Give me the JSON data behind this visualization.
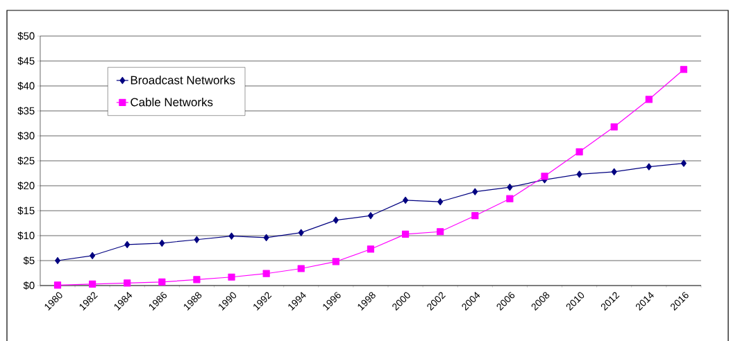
{
  "chart_data": {
    "type": "line",
    "categories": [
      "1980",
      "1982",
      "1984",
      "1986",
      "1988",
      "1990",
      "1992",
      "1994",
      "1996",
      "1998",
      "2000",
      "2002",
      "2004",
      "2006",
      "2008",
      "2010",
      "2012",
      "2014",
      "2016"
    ],
    "series": [
      {
        "name": "Broadcast Networks",
        "color": "#000080",
        "marker": "diamond",
        "values": [
          5.0,
          6.0,
          8.2,
          8.5,
          9.2,
          9.9,
          9.6,
          10.6,
          13.1,
          14.0,
          17.1,
          16.8,
          18.8,
          19.7,
          21.2,
          22.3,
          22.8,
          23.8,
          24.5
        ]
      },
      {
        "name": "Cable Networks",
        "color": "#ff00ff",
        "marker": "square",
        "values": [
          0.1,
          0.3,
          0.5,
          0.7,
          1.2,
          1.7,
          2.4,
          3.4,
          4.8,
          7.3,
          10.3,
          10.8,
          14.0,
          17.4,
          21.9,
          26.8,
          31.8,
          37.3,
          43.3
        ]
      }
    ],
    "ylim": [
      0,
      50
    ],
    "yticks": [
      {
        "value": 0,
        "label": "$0"
      },
      {
        "value": 5,
        "label": "$5"
      },
      {
        "value": 10,
        "label": "$10"
      },
      {
        "value": 15,
        "label": "$15"
      },
      {
        "value": 20,
        "label": "$20"
      },
      {
        "value": 25,
        "label": "$25"
      },
      {
        "value": 30,
        "label": "$30"
      },
      {
        "value": 35,
        "label": "$35"
      },
      {
        "value": 40,
        "label": "$40"
      },
      {
        "value": 45,
        "label": "$45"
      },
      {
        "value": 50,
        "label": "$50"
      }
    ],
    "grid": "y",
    "legend": "top left"
  }
}
